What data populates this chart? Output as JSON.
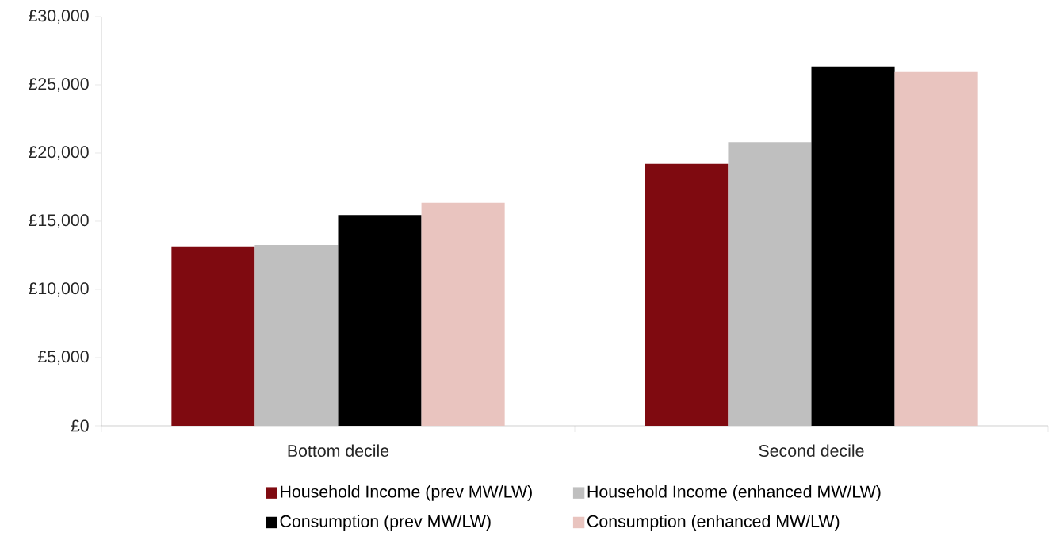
{
  "chart_data": {
    "type": "bar",
    "categories": [
      "Bottom decile",
      "Second decile"
    ],
    "series": [
      {
        "name": "Household Income (prev MW/LW)",
        "color": "#7f0a10",
        "values": [
          13150,
          19200
        ]
      },
      {
        "name": "Household Income (enhanced MW/LW)",
        "color": "#bfbfbf",
        "values": [
          13250,
          20800
        ]
      },
      {
        "name": "Consumption (prev MW/LW)",
        "color": "#000000",
        "values": [
          15450,
          26350
        ]
      },
      {
        "name": "Consumption (enhanced MW/LW)",
        "color": "#e9c4bf",
        "values": [
          16350,
          25950
        ]
      }
    ],
    "ylim": [
      0,
      30000
    ],
    "yticks": [
      {
        "value": 0,
        "label": "£0"
      },
      {
        "value": 5000,
        "label": "£5,000"
      },
      {
        "value": 10000,
        "label": "£10,000"
      },
      {
        "value": 15000,
        "label": "£15,000"
      },
      {
        "value": 20000,
        "label": "£20,000"
      },
      {
        "value": 25000,
        "label": "£25,000"
      },
      {
        "value": 30000,
        "label": "£30,000"
      }
    ],
    "grid": false,
    "legend": "bottom"
  }
}
